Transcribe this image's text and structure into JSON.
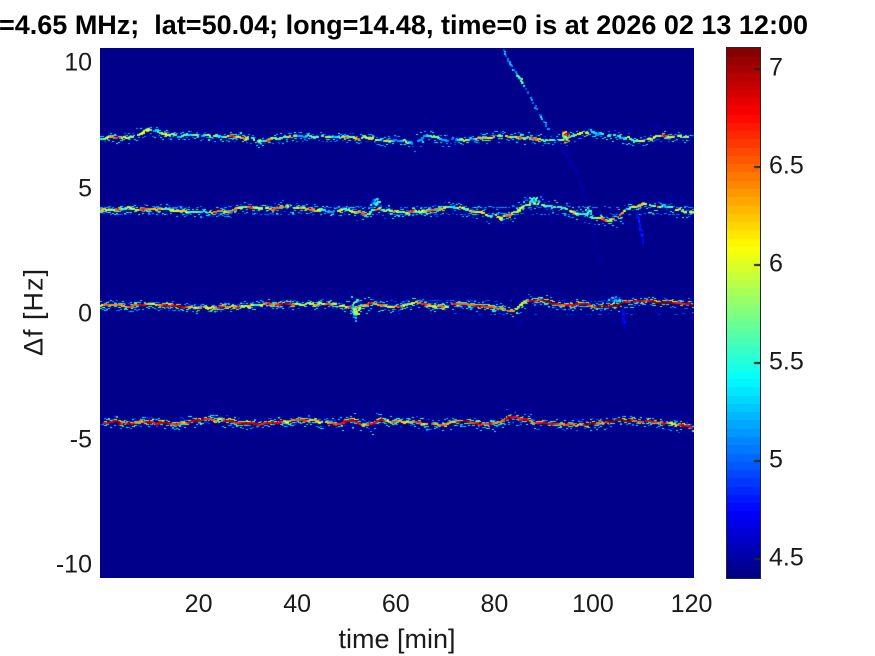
{
  "chart_data": {
    "type": "heatmap",
    "subtype": "doppler-spectrogram",
    "title": "=4.65 MHz;  lat=50.04; long=14.48, time=0 is at 2026 02 13 12:00",
    "xlabel": "time [min]",
    "ylabel": "Δf [Hz]",
    "xlim": [
      0,
      120.5
    ],
    "ylim": [
      -10.5,
      10.6
    ],
    "xticks": [
      20,
      40,
      60,
      80,
      100,
      120
    ],
    "yticks": [
      10,
      5,
      0,
      -5,
      -10
    ],
    "grid": false,
    "legend": false,
    "colormap": "jet",
    "background_value": 4.43,
    "colorbar": {
      "min": 4.4,
      "max": 7.1,
      "ticks": [
        4.5,
        5,
        5.5,
        6,
        6.5,
        7
      ]
    },
    "traces": [
      {
        "name": "echo-trace-7Hz",
        "render": {
          "seed": 11,
          "present": 0.85,
          "vmin": 4.95,
          "vmax": 6.95,
          "gamma": 1.2,
          "jitter": 1.3,
          "speckle": 2.6,
          "glow": 0.6,
          "wseg": 0.45,
          "whi": 0.6,
          "redshift_t": 999,
          "redshift": 0
        },
        "points": [
          [
            0,
            7.02
          ],
          [
            4,
            7.04
          ],
          [
            8,
            7.14
          ],
          [
            10,
            7.34
          ],
          [
            12,
            7.26
          ],
          [
            15,
            7.14
          ],
          [
            20,
            7.1
          ],
          [
            25,
            7.06
          ],
          [
            30,
            7.02
          ],
          [
            33,
            6.9
          ],
          [
            36,
            7.02
          ],
          [
            42,
            7.1
          ],
          [
            49,
            7.06
          ],
          [
            55,
            6.98
          ],
          [
            61,
            6.9
          ],
          [
            64,
            6.82
          ],
          [
            66,
            7.08
          ],
          [
            71,
            6.94
          ],
          [
            77,
            6.98
          ],
          [
            83,
            7.11
          ],
          [
            87,
            7.02
          ],
          [
            93,
            6.92
          ],
          [
            95,
            7.06
          ],
          [
            98,
            7.19
          ],
          [
            103,
            7.15
          ],
          [
            107,
            7.01
          ],
          [
            110,
            6.92
          ],
          [
            114,
            7.08
          ],
          [
            118,
            7.05
          ],
          [
            120.5,
            7.11
          ]
        ]
      },
      {
        "name": "echo-trace-4Hz",
        "render": {
          "seed": 22,
          "present": 0.93,
          "vmin": 5.05,
          "vmax": 6.95,
          "gamma": 1.0,
          "jitter": 1.4,
          "speckle": 2.8,
          "glow": 0.65,
          "wseg": 0.45,
          "whi": 0.62,
          "redshift_t": 999,
          "redshift": 0
        },
        "points": [
          [
            0,
            4.15
          ],
          [
            6,
            4.22
          ],
          [
            12,
            4.18
          ],
          [
            18,
            4.11
          ],
          [
            22,
            4.06
          ],
          [
            26,
            4.1
          ],
          [
            30,
            4.24
          ],
          [
            34,
            4.18
          ],
          [
            38,
            4.3
          ],
          [
            42,
            4.2
          ],
          [
            47,
            4.12
          ],
          [
            51,
            4.14
          ],
          [
            54,
            4.0
          ],
          [
            56,
            4.18
          ],
          [
            59,
            4.1
          ],
          [
            61,
            4.08
          ],
          [
            65,
            4.1
          ],
          [
            69,
            4.18
          ],
          [
            72,
            4.26
          ],
          [
            75,
            4.14
          ],
          [
            79,
            3.96
          ],
          [
            82,
            3.86
          ],
          [
            85,
            4.18
          ],
          [
            88,
            4.4
          ],
          [
            91,
            4.32
          ],
          [
            94,
            4.2
          ],
          [
            97,
            4.03
          ],
          [
            99.5,
            3.88
          ],
          [
            102,
            3.78
          ],
          [
            104,
            3.8
          ],
          [
            107,
            4.1
          ],
          [
            110,
            4.38
          ],
          [
            113,
            4.27
          ],
          [
            116,
            4.24
          ],
          [
            118,
            4.12
          ],
          [
            120.5,
            4.06
          ]
        ]
      },
      {
        "name": "echo-trace-0Hz",
        "render": {
          "seed": 33,
          "present": 0.97,
          "vmin": 5.35,
          "vmax": 7.1,
          "gamma": 0.8,
          "jitter": 1.2,
          "speckle": 2.4,
          "glow": 0.7,
          "wseg": 0.5,
          "whi": 0.68,
          "redshift_t": 85,
          "redshift": 0.25
        },
        "points": [
          [
            0,
            0.35
          ],
          [
            3,
            0.42
          ],
          [
            6,
            0.32
          ],
          [
            10,
            0.43
          ],
          [
            14,
            0.33
          ],
          [
            18,
            0.29
          ],
          [
            22,
            0.25
          ],
          [
            26,
            0.28
          ],
          [
            30,
            0.33
          ],
          [
            34,
            0.39
          ],
          [
            38,
            0.4
          ],
          [
            42,
            0.43
          ],
          [
            47,
            0.4
          ],
          [
            50,
            0.3
          ],
          [
            52,
            0.22
          ],
          [
            55,
            0.46
          ],
          [
            57,
            0.38
          ],
          [
            60,
            0.28
          ],
          [
            64,
            0.43
          ],
          [
            67,
            0.36
          ],
          [
            70,
            0.32
          ],
          [
            73,
            0.37
          ],
          [
            76,
            0.33
          ],
          [
            79,
            0.29
          ],
          [
            82,
            0.2
          ],
          [
            84,
            0.18
          ],
          [
            87,
            0.54
          ],
          [
            89,
            0.57
          ],
          [
            92,
            0.46
          ],
          [
            95,
            0.4
          ],
          [
            98,
            0.37
          ],
          [
            101,
            0.34
          ],
          [
            104,
            0.32
          ],
          [
            106,
            0.45
          ],
          [
            110,
            0.5
          ],
          [
            113,
            0.48
          ],
          [
            116,
            0.45
          ],
          [
            119,
            0.42
          ],
          [
            120.5,
            0.3
          ]
        ]
      },
      {
        "name": "echo-trace-minus4.3Hz",
        "render": {
          "seed": 44,
          "present": 0.97,
          "vmin": 5.35,
          "vmax": 7.1,
          "gamma": 0.8,
          "jitter": 1.3,
          "speckle": 3.0,
          "glow": 0.85,
          "wseg": 0.5,
          "whi": 0.68,
          "redshift_t": 98,
          "redshift": 0.18
        },
        "points": [
          [
            0,
            -4.32
          ],
          [
            3,
            -4.29
          ],
          [
            6,
            -4.34
          ],
          [
            9,
            -4.28
          ],
          [
            12,
            -4.33
          ],
          [
            15,
            -4.39
          ],
          [
            18,
            -4.3
          ],
          [
            21,
            -4.21
          ],
          [
            23,
            -4.18
          ],
          [
            26,
            -4.26
          ],
          [
            29,
            -4.34
          ],
          [
            32,
            -4.37
          ],
          [
            35,
            -4.33
          ],
          [
            38,
            -4.26
          ],
          [
            41,
            -4.21
          ],
          [
            45,
            -4.28
          ],
          [
            48,
            -4.36
          ],
          [
            51,
            -4.25
          ],
          [
            54,
            -4.43
          ],
          [
            57,
            -4.25
          ],
          [
            61,
            -4.29
          ],
          [
            64,
            -4.32
          ],
          [
            67,
            -4.4
          ],
          [
            70,
            -4.37
          ],
          [
            73,
            -4.3
          ],
          [
            76,
            -4.34
          ],
          [
            79,
            -4.37
          ],
          [
            82,
            -4.22
          ],
          [
            83,
            -4.08
          ],
          [
            85,
            -4.15
          ],
          [
            88,
            -4.28
          ],
          [
            91,
            -4.33
          ],
          [
            94,
            -4.36
          ],
          [
            97,
            -4.39
          ],
          [
            100,
            -4.34
          ],
          [
            103,
            -4.26
          ],
          [
            106,
            -4.24
          ],
          [
            110,
            -4.26
          ],
          [
            113,
            -4.29
          ],
          [
            116,
            -4.35
          ],
          [
            119,
            -4.47
          ],
          [
            120.5,
            -4.54
          ]
        ]
      }
    ],
    "streaks": [
      {
        "name": "interference-arc",
        "render": {
          "seed": 77,
          "knot_df": 9.4,
          "segments": [
            {
              "df0": 10.57,
              "df1": 7.35,
              "v": 5.1,
              "jv": 0.55,
              "present": 0.75,
              "w": 2,
              "h": 2
            },
            {
              "df0": 7.35,
              "df1": 4.4,
              "v": 4.52,
              "jv": 0.08,
              "present": 0.9,
              "w": 2,
              "h": 2
            },
            {
              "df0": 4.4,
              "df1": 0.78,
              "v": 4.49,
              "jv": 0.07,
              "present": 0.88,
              "w": 2,
              "h": 2
            }
          ]
        },
        "points": [
          [
            81.6,
            10.57
          ],
          [
            83.3,
            9.91
          ],
          [
            85.0,
            9.42
          ],
          [
            86.6,
            8.84
          ],
          [
            88.7,
            8.1
          ],
          [
            90.8,
            7.44
          ],
          [
            92.5,
            6.95
          ],
          [
            94.4,
            6.35
          ],
          [
            96.3,
            5.72
          ],
          [
            97.5,
            5.06
          ],
          [
            98.7,
            4.23
          ],
          [
            99.6,
            3.57
          ],
          [
            100.4,
            2.92
          ],
          [
            101.2,
            2.26
          ],
          [
            102.1,
            1.44
          ],
          [
            102.6,
            0.78
          ]
        ]
      },
      {
        "name": "faint-streak-right",
        "render": {
          "seed": 78,
          "knot_df": null,
          "segments": [
            {
              "df0": 4.05,
              "df1": 2.9,
              "v": 4.78,
              "jv": 0.12,
              "present": 0.8,
              "w": 2,
              "h": 2
            }
          ]
        },
        "points": [
          [
            108.9,
            4.05
          ],
          [
            109.5,
            3.45
          ],
          [
            110.0,
            2.9
          ]
        ]
      },
      {
        "name": "faint-streak-below-0",
        "render": {
          "seed": 79,
          "knot_df": null,
          "segments": [
            {
              "df0": 0.2,
              "df1": -0.5,
              "v": 4.7,
              "jv": 0.1,
              "present": 0.8,
              "w": 2,
              "h": 2
            }
          ]
        },
        "points": [
          [
            105.9,
            0.2
          ],
          [
            106.2,
            -0.5
          ]
        ]
      }
    ],
    "sidebands": [
      {
        "df": 4.28,
        "t0": 0,
        "t1": 120.5,
        "v": 5.15,
        "density": 0.72,
        "name": "sideband-upper-4Hz"
      },
      {
        "df": 4.0,
        "t0": 0,
        "t1": 120.5,
        "v": 5.05,
        "density": 0.68,
        "name": "sideband-lower-4Hz"
      },
      {
        "df": 0.55,
        "t0": 58,
        "t1": 120.5,
        "v": 4.95,
        "density": 0.45,
        "name": "sideband-upper-0Hz"
      },
      {
        "df": 0.02,
        "t0": 58,
        "t1": 120.5,
        "v": 4.9,
        "density": 0.3,
        "name": "sideband-lower-0Hz"
      }
    ],
    "blobs": [
      {
        "t": 94.3,
        "df": 7.1,
        "w": 5,
        "h": 7,
        "n": 40,
        "vmin": 5.2,
        "vmax": 7.1,
        "seed": 91,
        "name": "crossing-blob-7Hz"
      },
      {
        "t": 98.8,
        "df": 4.15,
        "w": 5,
        "h": 4,
        "n": 12,
        "vmin": 5.0,
        "vmax": 5.9,
        "seed": 92,
        "name": "crossing-blob-4Hz"
      },
      {
        "t": 87.8,
        "df": 4.6,
        "w": 11,
        "h": 5,
        "n": 26,
        "vmin": 4.8,
        "vmax": 5.9,
        "seed": 93,
        "name": "cloud-above-4Hz"
      },
      {
        "t": 55.7,
        "df": 4.5,
        "w": 7,
        "h": 5,
        "n": 20,
        "vmin": 4.8,
        "vmax": 5.7,
        "seed": 94,
        "name": "cloud-4Hz-left"
      },
      {
        "t": 51.6,
        "df": 0.25,
        "w": 5,
        "h": 12,
        "n": 40,
        "vmin": 4.9,
        "vmax": 6.3,
        "seed": 95,
        "name": "smear-0Hz"
      },
      {
        "t": 104.5,
        "df": 0.62,
        "w": 8,
        "h": 4,
        "n": 20,
        "vmin": 4.8,
        "vmax": 5.6,
        "seed": 96,
        "name": "cloud-above-0Hz"
      }
    ]
  }
}
